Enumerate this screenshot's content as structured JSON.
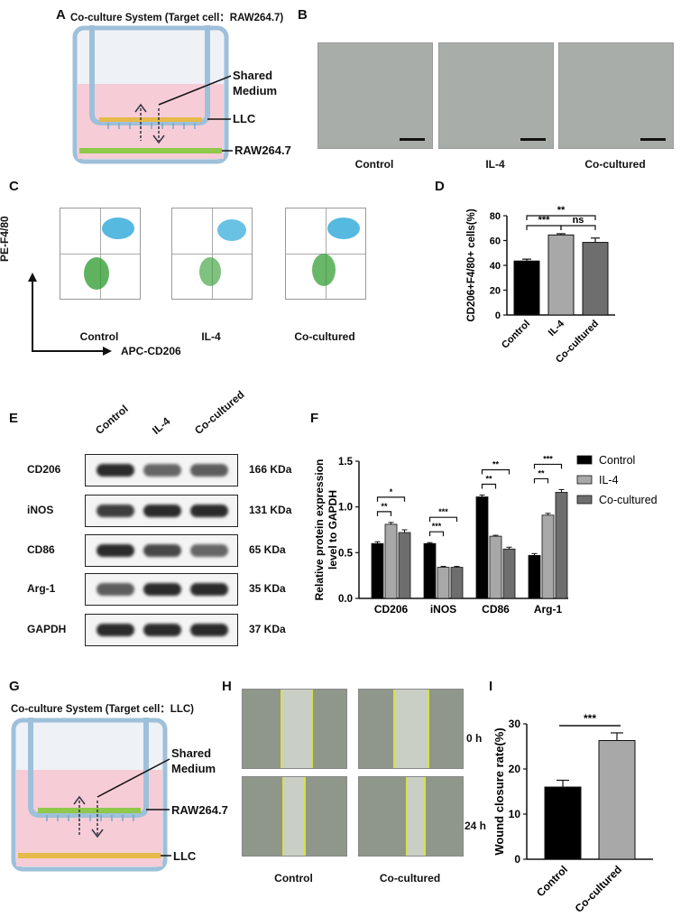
{
  "panels": {
    "a": "A",
    "b": "B",
    "c": "C",
    "d": "D",
    "e": "E",
    "f": "F",
    "g": "G",
    "h": "H",
    "i": "I"
  },
  "panel_a": {
    "title": "Co-culture System (Target cell：RAW264.7)",
    "shared_medium": "Shared Medium",
    "upper": "LLC",
    "lower": "RAW264.7"
  },
  "panel_b": {
    "labels": [
      "Control",
      "IL-4",
      "Co-cultured"
    ]
  },
  "panel_c": {
    "y_axis": "PE-F4/80",
    "x_axis": "APC-CD206",
    "labels": [
      "Control",
      "IL-4",
      "Co-cultured"
    ]
  },
  "panel_e": {
    "lanes": [
      "Control",
      "IL-4",
      "Co-cultured"
    ],
    "rows": [
      {
        "name": "CD206",
        "size": "166 KDa"
      },
      {
        "name": "iNOS",
        "size": "131 KDa"
      },
      {
        "name": "CD86",
        "size": "65 KDa"
      },
      {
        "name": "Arg-1",
        "size": "35 KDa"
      },
      {
        "name": "GAPDH",
        "size": "37 KDa"
      }
    ]
  },
  "panel_g": {
    "title": "Co-culture System (Target cell：LLC)",
    "shared_medium": "Shared Medium",
    "upper": "RAW264.7",
    "lower": "LLC"
  },
  "panel_h": {
    "times": [
      "0 h",
      "24 h"
    ],
    "labels": [
      "Control",
      "Co-cultured"
    ]
  },
  "colors": {
    "black": "#000000",
    "light_gray": "#a8a8a8",
    "dark_gray": "#6e6e6e",
    "medium": "#f6cdd6",
    "flow_green": "#2a9a2a",
    "flow_blue": "#2aa8d8",
    "scratch_edge": "#d6e04a"
  },
  "chart_data": [
    {
      "id": "D",
      "type": "bar",
      "categories": [
        "Control",
        "IL-4",
        "Co-cultured"
      ],
      "values": [
        43.5,
        64.5,
        58.5
      ],
      "errors": [
        1.5,
        1.0,
        3.5
      ],
      "ylabel": "CD206+F4/80+ cells(%)",
      "ylim": [
        0,
        80
      ],
      "yticks": [
        0,
        20,
        40,
        60,
        80
      ],
      "significance": [
        "***",
        "ns",
        "**"
      ]
    },
    {
      "id": "F",
      "type": "bar",
      "categories": [
        "CD206",
        "iNOS",
        "CD86",
        "Arg-1"
      ],
      "series": [
        {
          "name": "Control",
          "values": [
            0.6,
            0.6,
            1.11,
            0.47
          ],
          "errors": [
            0.02,
            0.01,
            0.02,
            0.02
          ]
        },
        {
          "name": "IL-4",
          "values": [
            0.81,
            0.34,
            0.68,
            0.91
          ],
          "errors": [
            0.02,
            0.01,
            0.01,
            0.02
          ]
        },
        {
          "name": "Co-cultured",
          "values": [
            0.72,
            0.34,
            0.54,
            1.16
          ],
          "errors": [
            0.03,
            0.01,
            0.02,
            0.03
          ]
        }
      ],
      "ylabel": "Relative protein expression level to GAPDH",
      "ylim": [
        0,
        1.5
      ],
      "yticks": [
        0.0,
        0.5,
        1.0,
        1.5
      ],
      "significance": [
        [
          "**",
          "*"
        ],
        [
          "***",
          "***"
        ],
        [
          "**",
          "**"
        ],
        [
          "**",
          "***"
        ]
      ]
    },
    {
      "id": "I",
      "type": "bar",
      "categories": [
        "Control",
        "Co-cultured"
      ],
      "values": [
        16.0,
        26.3
      ],
      "errors": [
        1.5,
        1.7
      ],
      "ylabel": "Wound closure rate(%)",
      "ylim": [
        0,
        30
      ],
      "yticks": [
        0,
        10,
        20,
        30
      ],
      "significance": [
        "***"
      ]
    }
  ]
}
